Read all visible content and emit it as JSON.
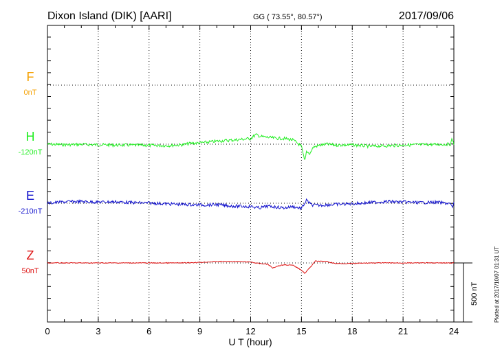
{
  "header": {
    "station": "Dixon Island (DIK)  [AARI]",
    "coords": "GG ( 73.55°,  80.57°)",
    "date": "2017/09/06"
  },
  "footer": {
    "plotted_note": "Plotted at 2017/10/07 01:31  UT",
    "scale_label": "500 nT"
  },
  "colors": {
    "F": "#f5a000",
    "H": "#22ee22",
    "E": "#1010cc",
    "Z": "#dd1010"
  },
  "chart_data": {
    "type": "line",
    "xlabel": "U T (hour)",
    "xlim": [
      0,
      24
    ],
    "x_ticks": [
      "0",
      "3",
      "6",
      "9",
      "12",
      "15",
      "18",
      "21",
      "24"
    ],
    "scale_bar_nT": 500,
    "grid": true,
    "series": [
      {
        "name": "F",
        "offset_label": "0nT",
        "color": "#f5a000",
        "points": []
      },
      {
        "name": "H",
        "offset_label": "-120nT",
        "color": "#22ee22",
        "points": [
          [
            0,
            0
          ],
          [
            1,
            -5
          ],
          [
            2,
            -2
          ],
          [
            3,
            -5
          ],
          [
            4,
            -8
          ],
          [
            5,
            -8
          ],
          [
            6,
            -10
          ],
          [
            7,
            -12
          ],
          [
            8,
            -5
          ],
          [
            8.5,
            8
          ],
          [
            9,
            10
          ],
          [
            10,
            25
          ],
          [
            11,
            35
          ],
          [
            12,
            48
          ],
          [
            12.3,
            80
          ],
          [
            12.6,
            65
          ],
          [
            13,
            58
          ],
          [
            13.5,
            50
          ],
          [
            14,
            48
          ],
          [
            14.5,
            35
          ],
          [
            14.8,
            5
          ],
          [
            15,
            -20
          ],
          [
            15.2,
            -150
          ],
          [
            15.3,
            -60
          ],
          [
            15.5,
            -80
          ],
          [
            15.7,
            -25
          ],
          [
            16,
            -12
          ],
          [
            16.5,
            0
          ],
          [
            17,
            -8
          ],
          [
            18,
            -6
          ],
          [
            19,
            -18
          ],
          [
            20,
            -14
          ],
          [
            21,
            -8
          ],
          [
            22,
            -4
          ],
          [
            23,
            -2
          ],
          [
            23.8,
            0
          ],
          [
            23.9,
            45
          ],
          [
            24,
            0
          ]
        ]
      },
      {
        "name": "E",
        "offset_label": "-210nT",
        "color": "#1010cc",
        "points": [
          [
            0,
            0
          ],
          [
            1,
            12
          ],
          [
            2,
            14
          ],
          [
            3,
            10
          ],
          [
            4,
            12
          ],
          [
            5,
            5
          ],
          [
            6,
            2
          ],
          [
            7,
            -5
          ],
          [
            8,
            -10
          ],
          [
            9,
            -15
          ],
          [
            10,
            -12
          ],
          [
            11,
            -25
          ],
          [
            12,
            -28
          ],
          [
            12.5,
            -40
          ],
          [
            13,
            -25
          ],
          [
            14,
            -40
          ],
          [
            14.5,
            -28
          ],
          [
            15,
            -45
          ],
          [
            15.3,
            25
          ],
          [
            15.6,
            -15
          ],
          [
            16,
            -18
          ],
          [
            17,
            -10
          ],
          [
            18,
            -5
          ],
          [
            19,
            5
          ],
          [
            20,
            14
          ],
          [
            21,
            10
          ],
          [
            22,
            5
          ],
          [
            23,
            8
          ],
          [
            23.8,
            -4
          ],
          [
            23.9,
            -40
          ],
          [
            24,
            8
          ]
        ]
      },
      {
        "name": "Z",
        "offset_label": "50nT",
        "color": "#dd1010",
        "points": [
          [
            0,
            0
          ],
          [
            2,
            0
          ],
          [
            4,
            0
          ],
          [
            6,
            0
          ],
          [
            8,
            0
          ],
          [
            9,
            5
          ],
          [
            10,
            12
          ],
          [
            11,
            12
          ],
          [
            12,
            8
          ],
          [
            12.5,
            -5
          ],
          [
            13,
            -10
          ],
          [
            13.3,
            -42
          ],
          [
            13.6,
            -25
          ],
          [
            14,
            -15
          ],
          [
            14.5,
            -20
          ],
          [
            15,
            -60
          ],
          [
            15.2,
            -88
          ],
          [
            15.5,
            -40
          ],
          [
            15.8,
            15
          ],
          [
            16.5,
            12
          ],
          [
            17,
            -5
          ],
          [
            18,
            -5
          ],
          [
            19,
            0
          ],
          [
            20,
            0
          ],
          [
            22,
            0
          ],
          [
            24,
            0
          ]
        ]
      }
    ]
  }
}
